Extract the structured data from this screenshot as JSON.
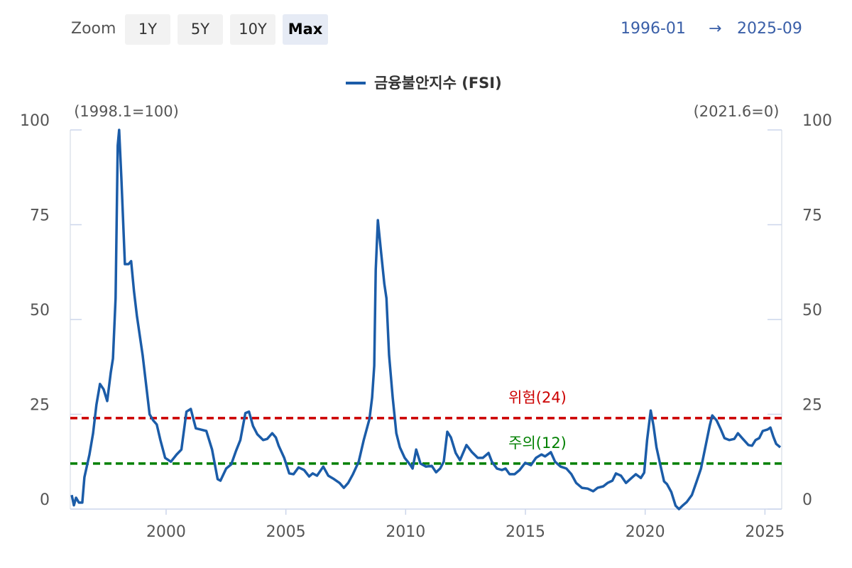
{
  "ui": {
    "zoom_label": "Zoom",
    "zoom_buttons": [
      "1Y",
      "5Y",
      "10Y",
      "Max"
    ],
    "zoom_active": 3,
    "range_start": "1996-01",
    "range_arrow": "→",
    "range_end": "2025-09"
  },
  "chart_data": {
    "type": "line",
    "y_label": "(1998.1=100)",
    "y2_label": "(2021.6=0)",
    "x": [
      1996.06,
      1996.15,
      1996.24,
      1996.36,
      1996.5,
      1996.59,
      1996.8,
      1996.95,
      1997.09,
      1997.24,
      1997.39,
      1997.54,
      1997.69,
      1997.78,
      1997.89,
      1997.98,
      1998.04,
      1998.13,
      1998.28,
      1998.43,
      1998.54,
      1998.66,
      1998.78,
      1999.02,
      1999.31,
      1999.46,
      1999.61,
      1999.76,
      1999.96,
      2000.2,
      2000.44,
      2000.64,
      2000.85,
      2001.03,
      2001.24,
      2001.44,
      2001.68,
      2001.92,
      2002.15,
      2002.27,
      2002.51,
      2002.72,
      2002.92,
      2003.1,
      2003.31,
      2003.46,
      2003.63,
      2003.81,
      2004.05,
      2004.22,
      2004.43,
      2004.58,
      2004.7,
      2004.93,
      2005.14,
      2005.32,
      2005.53,
      2005.76,
      2005.97,
      2006.12,
      2006.3,
      2006.56,
      2006.77,
      2007.01,
      2007.24,
      2007.42,
      2007.6,
      2007.8,
      2008.04,
      2008.25,
      2008.49,
      2008.6,
      2008.69,
      2008.75,
      2008.84,
      2008.99,
      2009.11,
      2009.2,
      2009.31,
      2009.46,
      2009.61,
      2009.76,
      2009.96,
      2010.2,
      2010.29,
      2010.44,
      2010.62,
      2010.85,
      2011.09,
      2011.27,
      2011.44,
      2011.59,
      2011.74,
      2011.89,
      2012.09,
      2012.27,
      2012.54,
      2012.77,
      2013.01,
      2013.22,
      2013.46,
      2013.6,
      2013.81,
      2014.02,
      2014.17,
      2014.34,
      2014.55,
      2014.76,
      2014.99,
      2015.23,
      2015.44,
      2015.67,
      2015.82,
      2016.06,
      2016.24,
      2016.47,
      2016.71,
      2016.92,
      2017.12,
      2017.36,
      2017.6,
      2017.83,
      2018.01,
      2018.25,
      2018.43,
      2018.63,
      2018.78,
      2018.99,
      2019.2,
      2019.43,
      2019.61,
      2019.82,
      2019.96,
      2020.08,
      2020.23,
      2020.35,
      2020.47,
      2020.62,
      2020.79,
      2020.91,
      2021.09,
      2021.27,
      2021.41,
      2021.56,
      2021.74,
      2021.95,
      2022.15,
      2022.33,
      2022.51,
      2022.69,
      2022.8,
      2022.98,
      2023.16,
      2023.31,
      2023.51,
      2023.72,
      2023.87,
      2024.08,
      2024.31,
      2024.46,
      2024.61,
      2024.76,
      2024.91,
      2025.11,
      2025.23,
      2025.35,
      2025.47,
      2025.64
    ],
    "series": [
      {
        "name": "금융불안지수 (FSI)",
        "color": "#1b5ca8",
        "values": [
          3.7,
          1.0,
          3.0,
          1.7,
          1.7,
          8.4,
          14.4,
          20,
          27.5,
          33,
          31.6,
          28.5,
          36,
          39.7,
          55.6,
          95.9,
          100,
          87.5,
          64.6,
          64.6,
          65.4,
          57.5,
          51,
          40.6,
          25,
          23.4,
          22.3,
          18.2,
          13.5,
          12.5,
          14.4,
          15.7,
          25.7,
          26.4,
          21.3,
          21,
          20.6,
          15.7,
          7.9,
          7.5,
          10.7,
          11.8,
          15.4,
          18.2,
          25.3,
          25.7,
          21.9,
          19.7,
          18.2,
          18.5,
          20,
          18.9,
          16.7,
          13.5,
          9.4,
          9.2,
          11,
          10.3,
          8.6,
          9.4,
          8.8,
          11.2,
          8.8,
          7.9,
          6.9,
          5.6,
          6.9,
          9.2,
          12.5,
          18.2,
          23.8,
          29.4,
          37.8,
          63.1,
          76.2,
          66.9,
          59.4,
          55.6,
          40.6,
          29.4,
          20,
          16.3,
          13.5,
          11.6,
          10.7,
          15.7,
          12,
          11.2,
          11.4,
          9.7,
          10.7,
          12.5,
          20.4,
          18.9,
          14.8,
          12.9,
          16.9,
          15,
          13.5,
          13.5,
          14.8,
          12.5,
          10.7,
          10.3,
          10.7,
          9.2,
          9.2,
          10.3,
          12.2,
          11.6,
          13.5,
          14.4,
          13.9,
          15,
          12.5,
          11.2,
          10.7,
          9.2,
          6.9,
          5.6,
          5.4,
          4.7,
          5.6,
          6,
          6.9,
          7.5,
          9.4,
          8.8,
          6.9,
          8.2,
          9.2,
          8.2,
          9.6,
          18.2,
          26,
          21.9,
          16.3,
          12,
          7.3,
          6.6,
          4.5,
          0.9,
          0,
          0.9,
          1.9,
          3.7,
          7.3,
          10.7,
          16.3,
          21.9,
          24.7,
          23.4,
          21,
          18.7,
          18.2,
          18.5,
          20,
          18.5,
          16.9,
          16.7,
          18.2,
          18.7,
          20.6,
          21,
          21.5,
          19.1,
          17.2,
          16.3
        ]
      }
    ],
    "reference_lines": [
      {
        "value": 24,
        "label": "위험(24)",
        "color": "#cc0000"
      },
      {
        "value": 12,
        "label": "주의(12)",
        "color": "#008000"
      }
    ],
    "xlim": [
      1996,
      2025.7
    ],
    "xticks": [
      2000,
      2005,
      2010,
      2015,
      2020,
      2025
    ],
    "ylim": [
      0,
      100
    ],
    "yticks": [
      0,
      25,
      50,
      75,
      100
    ],
    "y2lim": [
      0,
      100
    ],
    "y2ticks": [
      0,
      25,
      50,
      75,
      100
    ]
  }
}
